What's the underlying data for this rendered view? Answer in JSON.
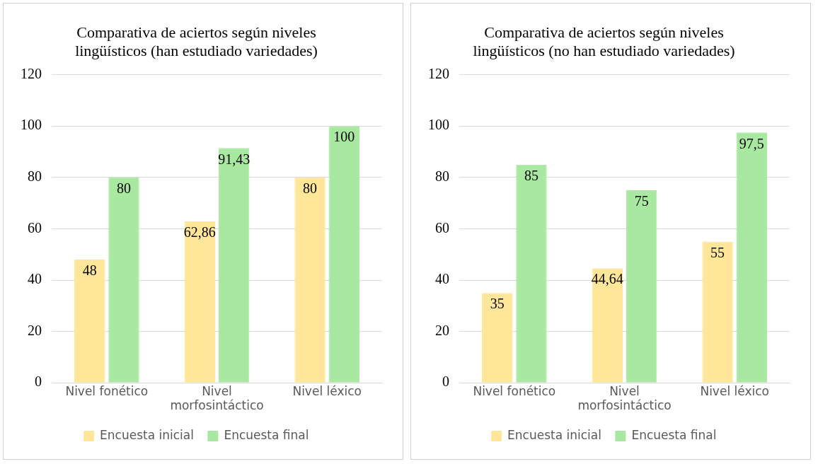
{
  "chart_data": [
    {
      "type": "bar",
      "title": "Comparativa de aciertos según niveles lingüísticos (han estudiado variedades)",
      "categories": [
        "Nivel fonético",
        "Nivel morfosintáctico",
        "Nivel léxico"
      ],
      "series": [
        {
          "name": "Encuesta inicial",
          "color": "#ffe699",
          "values": [
            48,
            62.86,
            80
          ],
          "value_labels": [
            "48",
            "62,86",
            "80"
          ]
        },
        {
          "name": "Encuesta final",
          "color": "#a9e8a0",
          "values": [
            80,
            91.43,
            100
          ],
          "value_labels": [
            "80",
            "91,43",
            "100"
          ]
        }
      ],
      "ylim": [
        0,
        120
      ],
      "yticks": [
        0,
        20,
        40,
        60,
        80,
        100,
        120
      ],
      "grid": "y",
      "legend": "bottom"
    },
    {
      "type": "bar",
      "title": "Comparativa de aciertos según niveles lingüísticos (no han estudiado variedades)",
      "categories": [
        "Nivel fonético",
        "Nivel morfosintáctico",
        "Nivel léxico"
      ],
      "series": [
        {
          "name": "Encuesta inicial",
          "color": "#ffe699",
          "values": [
            35,
            44.64,
            55
          ],
          "value_labels": [
            "35",
            "44,64",
            "55"
          ]
        },
        {
          "name": "Encuesta final",
          "color": "#a9e8a0",
          "values": [
            85,
            75,
            97.5
          ],
          "value_labels": [
            "85",
            "75",
            "97,5"
          ]
        }
      ],
      "ylim": [
        0,
        120
      ],
      "yticks": [
        0,
        20,
        40,
        60,
        80,
        100,
        120
      ],
      "grid": "y",
      "legend": "bottom"
    }
  ]
}
